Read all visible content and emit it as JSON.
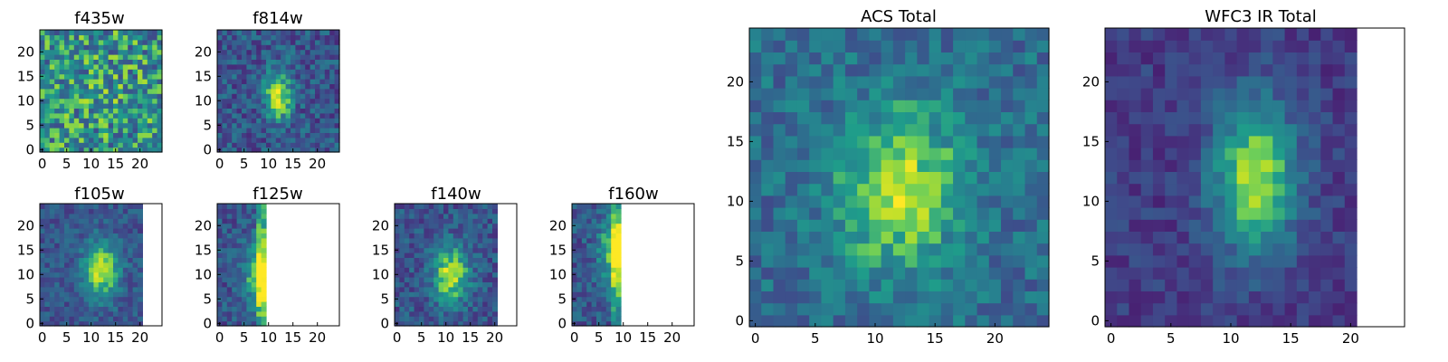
{
  "chart_data": [
    {
      "type": "heatmap",
      "title": "f435w",
      "xticks": [
        "0",
        "5",
        "10",
        "15",
        "20"
      ],
      "yticks": [
        "0",
        "5",
        "10",
        "15",
        "20"
      ],
      "xlim": [
        0,
        25
      ],
      "ylim": [
        0,
        25
      ],
      "data_width": 25,
      "data_height": 25,
      "colormap": "viridis",
      "grid": false,
      "pattern": "noise",
      "peak": [
        12,
        12
      ],
      "sigma": [
        4.0,
        4.0
      ],
      "amp": 0.05,
      "noise": 0.6,
      "base": 0.55,
      "seed": 3
    },
    {
      "type": "heatmap",
      "title": "f814w",
      "xticks": [
        "0",
        "5",
        "10",
        "15",
        "20"
      ],
      "yticks": [
        "0",
        "5",
        "10",
        "15",
        "20"
      ],
      "xlim": [
        0,
        25
      ],
      "ylim": [
        0,
        25
      ],
      "data_width": 25,
      "data_height": 25,
      "colormap": "viridis",
      "grid": false,
      "pattern": "gaussian",
      "peak": [
        12,
        11
      ],
      "sigma": [
        2.0,
        3.5
      ],
      "amp": 0.6,
      "noise": 0.35,
      "base": 0.3,
      "seed": 7
    },
    {
      "type": "heatmap",
      "title": "f105w",
      "xticks": [
        "0",
        "5",
        "10",
        "15",
        "20"
      ],
      "yticks": [
        "0",
        "5",
        "10",
        "15",
        "20"
      ],
      "xlim": [
        0,
        25
      ],
      "ylim": [
        0,
        25
      ],
      "data_width": 21,
      "data_height": 25,
      "colormap": "viridis",
      "grid": false,
      "pattern": "gaussian",
      "peak": [
        12,
        11
      ],
      "sigma": [
        2.5,
        4.0
      ],
      "amp": 0.6,
      "noise": 0.25,
      "base": 0.3,
      "seed": 11
    },
    {
      "type": "heatmap",
      "title": "f125w",
      "xticks": [
        "0",
        "5",
        "10",
        "15",
        "20"
      ],
      "yticks": [
        "0",
        "5",
        "10",
        "15",
        "20"
      ],
      "xlim": [
        0,
        25
      ],
      "ylim": [
        0,
        25
      ],
      "data_width": 10,
      "data_height": 25,
      "colormap": "viridis",
      "grid": false,
      "pattern": "ramp",
      "peak": [
        9,
        10
      ],
      "sigma": [
        2.5,
        5.0
      ],
      "amp": 0.6,
      "noise": 0.3,
      "base": 0.3,
      "seed": 19
    },
    {
      "type": "heatmap",
      "title": "f140w",
      "xticks": [
        "0",
        "5",
        "10",
        "15",
        "20"
      ],
      "yticks": [
        "0",
        "5",
        "10",
        "15",
        "20"
      ],
      "xlim": [
        0,
        25
      ],
      "ylim": [
        0,
        25
      ],
      "data_width": 21,
      "data_height": 25,
      "colormap": "viridis",
      "grid": false,
      "pattern": "gaussian",
      "peak": [
        11,
        10
      ],
      "sigma": [
        2.5,
        4.0
      ],
      "amp": 0.6,
      "noise": 0.3,
      "base": 0.3,
      "seed": 23
    },
    {
      "type": "heatmap",
      "title": "f160w",
      "xticks": [
        "0",
        "5",
        "10",
        "15",
        "20"
      ],
      "yticks": [
        "0",
        "5",
        "10",
        "15",
        "20"
      ],
      "xlim": [
        0,
        25
      ],
      "ylim": [
        0,
        25
      ],
      "data_width": 10,
      "data_height": 25,
      "colormap": "viridis",
      "grid": false,
      "pattern": "ramp",
      "peak": [
        9,
        15
      ],
      "sigma": [
        2.5,
        5.0
      ],
      "amp": 0.6,
      "noise": 0.3,
      "base": 0.3,
      "seed": 31
    },
    {
      "type": "heatmap",
      "title": "ACS Total",
      "xticks": [
        "0",
        "5",
        "10",
        "15",
        "20"
      ],
      "yticks": [
        "0",
        "5",
        "10",
        "15",
        "20"
      ],
      "xlim": [
        0,
        25
      ],
      "ylim": [
        0,
        25
      ],
      "data_width": 25,
      "data_height": 25,
      "colormap": "viridis",
      "grid": false,
      "pattern": "gaussian",
      "peak": [
        12,
        11
      ],
      "sigma": [
        3.5,
        4.5
      ],
      "amp": 0.5,
      "noise": 0.3,
      "base": 0.4,
      "seed": 43
    },
    {
      "type": "heatmap",
      "title": "WFC3 IR Total",
      "xticks": [
        "0",
        "5",
        "10",
        "15",
        "20"
      ],
      "yticks": [
        "0",
        "5",
        "10",
        "15",
        "20"
      ],
      "xlim": [
        0,
        25
      ],
      "ylim": [
        0,
        25
      ],
      "data_width": 21,
      "data_height": 25,
      "colormap": "viridis",
      "grid": false,
      "pattern": "gaussian",
      "peak": [
        12,
        12
      ],
      "sigma": [
        2.5,
        4.5
      ],
      "amp": 0.65,
      "noise": 0.2,
      "base": 0.2,
      "seed": 53
    }
  ]
}
